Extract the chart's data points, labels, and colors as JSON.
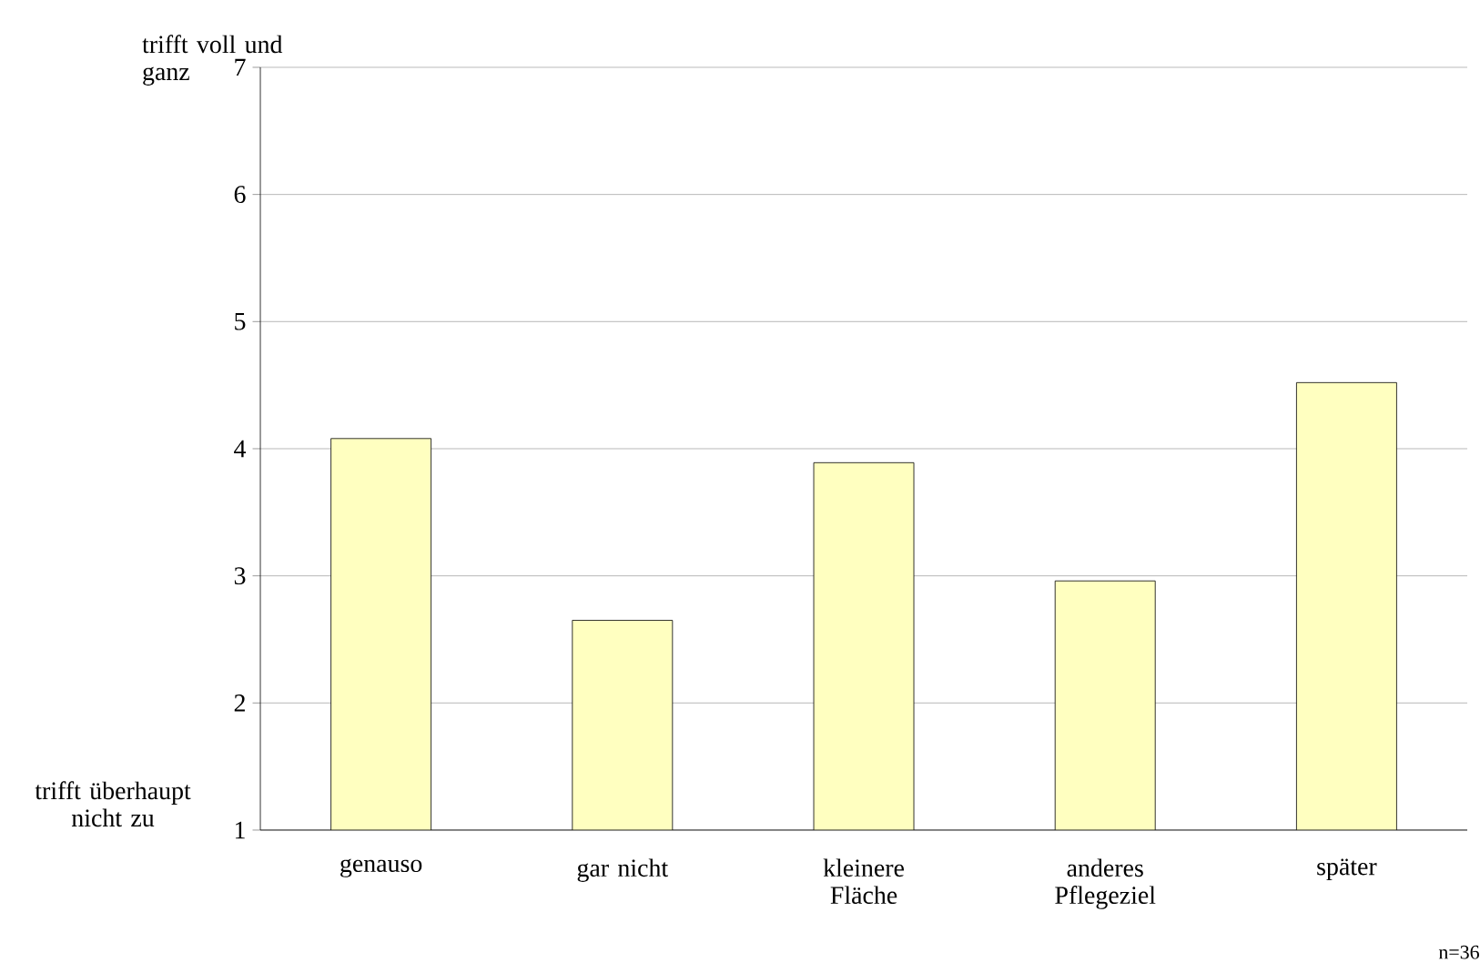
{
  "chart_data": {
    "type": "bar",
    "categories": [
      "genauso",
      "gar nicht",
      "kleinere Fläche",
      "anderes Pflegeziel",
      "später"
    ],
    "values": [
      4.08,
      2.65,
      3.89,
      2.96,
      4.52
    ],
    "color": "#ffffc0",
    "ylim": [
      1,
      7
    ],
    "yticks": [
      1,
      2,
      3,
      4,
      5,
      6,
      7
    ],
    "grid": "y",
    "annotations": [
      "trifft voll und ganz",
      "trifft überhaupt nicht zu",
      "n=36"
    ]
  }
}
